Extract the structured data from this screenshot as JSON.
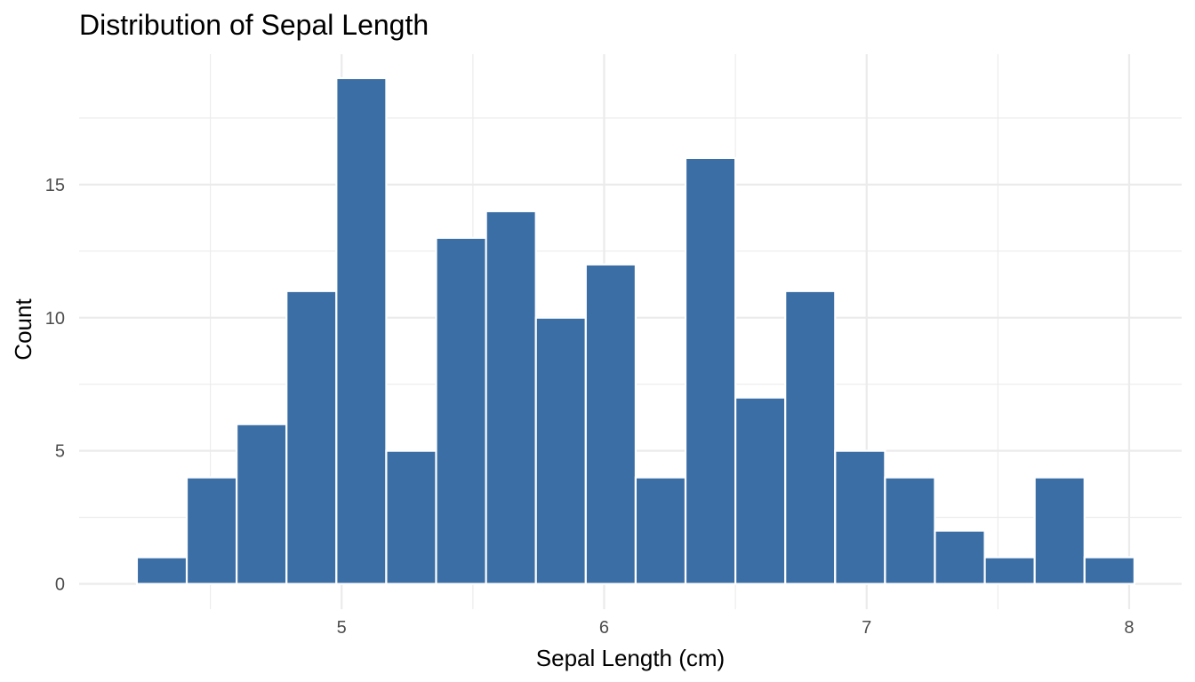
{
  "chart_data": {
    "type": "bar",
    "subtype": "histogram",
    "title": "Distribution of Sepal Length",
    "xlabel": "Sepal Length (cm)",
    "ylabel": "Count",
    "bin_width": 0.19,
    "bins": [
      {
        "start": 4.22,
        "end": 4.41,
        "count": 1
      },
      {
        "start": 4.41,
        "end": 4.6,
        "count": 4
      },
      {
        "start": 4.6,
        "end": 4.79,
        "count": 6
      },
      {
        "start": 4.79,
        "end": 4.98,
        "count": 11
      },
      {
        "start": 4.98,
        "end": 5.17,
        "count": 19
      },
      {
        "start": 5.17,
        "end": 5.36,
        "count": 5
      },
      {
        "start": 5.36,
        "end": 5.55,
        "count": 13
      },
      {
        "start": 5.55,
        "end": 5.74,
        "count": 14
      },
      {
        "start": 5.74,
        "end": 5.93,
        "count": 10
      },
      {
        "start": 5.93,
        "end": 6.12,
        "count": 12
      },
      {
        "start": 6.12,
        "end": 6.31,
        "count": 4
      },
      {
        "start": 6.31,
        "end": 6.5,
        "count": 16
      },
      {
        "start": 6.5,
        "end": 6.69,
        "count": 7
      },
      {
        "start": 6.69,
        "end": 6.88,
        "count": 11
      },
      {
        "start": 6.88,
        "end": 7.07,
        "count": 5
      },
      {
        "start": 7.07,
        "end": 7.26,
        "count": 4
      },
      {
        "start": 7.26,
        "end": 7.45,
        "count": 2
      },
      {
        "start": 7.45,
        "end": 7.64,
        "count": 1
      },
      {
        "start": 7.64,
        "end": 7.83,
        "count": 4
      },
      {
        "start": 7.83,
        "end": 8.02,
        "count": 1
      }
    ],
    "xlim": [
      4.0,
      8.2
    ],
    "ylim": [
      -0.95,
      19.9
    ],
    "x_ticks": [
      5,
      6,
      7,
      8
    ],
    "x_tick_labels": [
      "5",
      "6",
      "7",
      "8"
    ],
    "x_minor_ticks": [
      4.5,
      5.5,
      6.5,
      7.5
    ],
    "y_ticks": [
      0,
      5,
      10,
      15
    ],
    "y_tick_labels": [
      "0",
      "5",
      "10",
      "15"
    ],
    "y_minor_ticks": [
      2.5,
      7.5,
      12.5,
      17.5
    ],
    "grid": true,
    "legend": "none",
    "colors": {
      "bar_fill": "#3a6ea5",
      "bar_outline": "#ffffff",
      "grid": "#ebebeb",
      "background": "#ffffff"
    }
  }
}
